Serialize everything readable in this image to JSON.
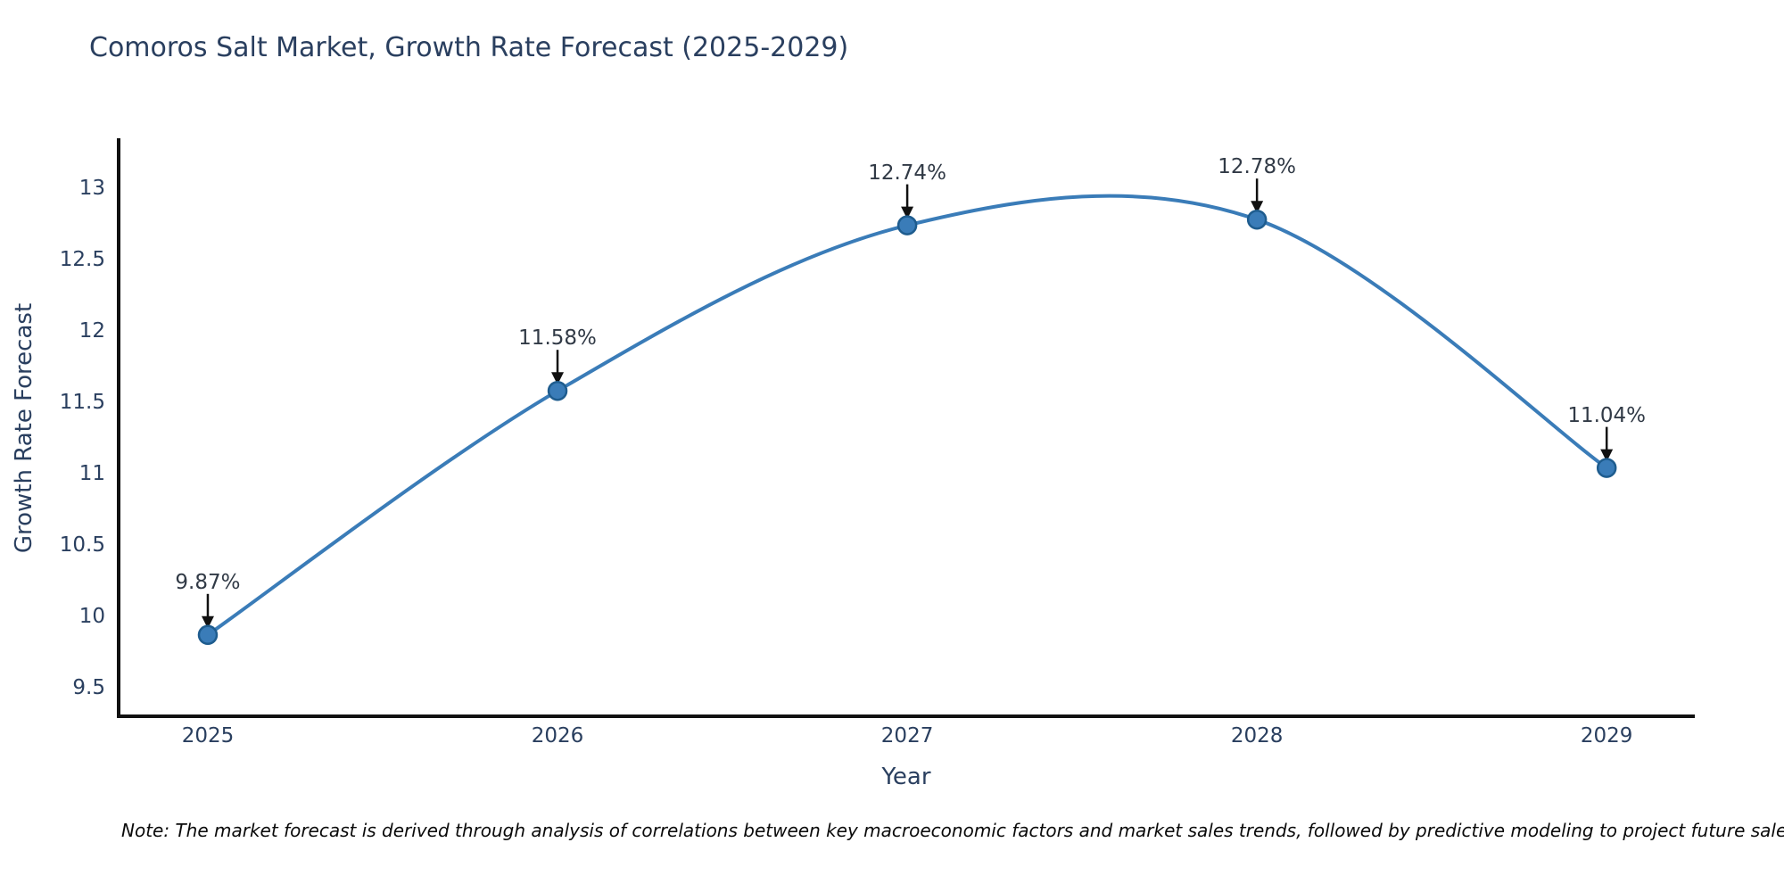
{
  "chart_data": {
    "type": "line",
    "title": "Comoros Salt Market, Growth Rate Forecast (2025-2029)",
    "xlabel": "Year",
    "ylabel": "Growth Rate Forecast",
    "x": [
      2025,
      2026,
      2027,
      2028,
      2029
    ],
    "values": [
      9.87,
      11.58,
      12.74,
      12.78,
      11.04
    ],
    "point_labels": [
      "9.87%",
      "11.58%",
      "12.74%",
      "12.78%",
      "11.04%"
    ],
    "x_ticks": [
      2025,
      2026,
      2027,
      2028,
      2029
    ],
    "y_ticks": [
      9.5,
      10,
      10.5,
      11,
      11.5,
      12,
      12.5,
      13
    ],
    "xlim": [
      2024.745,
      2029.252
    ],
    "ylim": [
      9.3,
      13.35
    ],
    "line_shape": "spline",
    "grid": false,
    "legend": "none",
    "note": "Note: The market forecast is derived through analysis of correlations between key macroeconomic factors and market sales trends, followed by predictive modeling to project future sales.",
    "colors": {
      "background": "#ffffff",
      "line": "#3a7cb8",
      "marker_fill": "#3a7cb8",
      "marker_stroke": "#1e5c8e",
      "axis_line": "#111111",
      "axis_text": "#2a3f5f",
      "annotation_text": "#313a46",
      "arrow": "#111111"
    }
  }
}
